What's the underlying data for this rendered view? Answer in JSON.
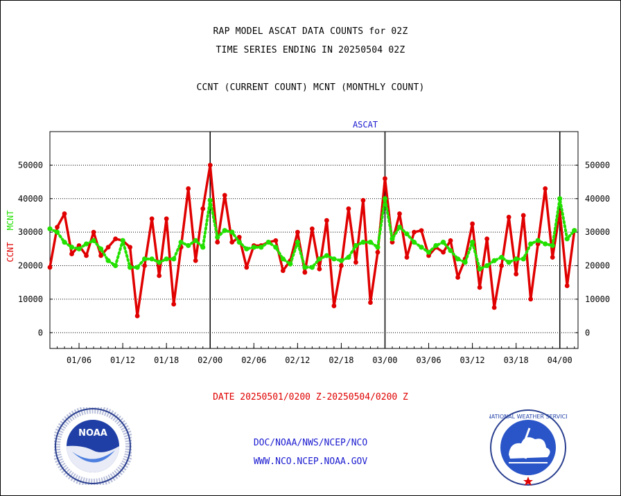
{
  "header": {
    "line1": "RAP MODEL ASCAT DATA COUNTS for 02Z",
    "line2": "TIME SERIES ENDING IN 20250504 02Z",
    "line3": "CCNT (CURRENT COUNT) MCNT (MONTHLY COUNT)"
  },
  "footer": {
    "date_range": "DATE 20250501/0200 Z-20250504/0200 Z",
    "org": "DOC/NOAA/NWS/NCEP/NCO",
    "url": "WWW.NCO.NCEP.NOAA.GOV"
  },
  "logos": {
    "noaa_text": "NOAA",
    "nws_text": "NATIONAL WEATHER SERVICE"
  },
  "chart_data": {
    "type": "line",
    "title": "ASCAT",
    "ylabel_left": "CCNT",
    "ylabel_left2": "MCNT",
    "ylim": [
      -4700,
      60000
    ],
    "yticks": [
      0,
      10000,
      20000,
      30000,
      40000,
      50000
    ],
    "xticks": [
      "01/06",
      "01/12",
      "01/18",
      "02/00",
      "02/06",
      "02/12",
      "02/18",
      "03/00",
      "03/06",
      "03/12",
      "03/18",
      "04/00"
    ],
    "xlim": [
      0,
      72.5
    ],
    "xtick_positions": [
      4,
      10,
      16,
      22,
      28,
      34,
      40,
      46,
      52,
      58,
      64,
      70
    ],
    "day_boundaries": [
      22,
      46,
      70
    ],
    "colors": {
      "ccnt": "#e00000",
      "mcnt": "#22e000",
      "title": "#1a1ad0"
    },
    "series": [
      {
        "name": "CCNT",
        "values": [
          19500,
          31500,
          35500,
          23500,
          26000,
          23000,
          30000,
          23000,
          25500,
          28000,
          27500,
          25500,
          5000,
          20000,
          34000,
          17000,
          34000,
          8500,
          25500,
          43000,
          21500,
          37000,
          50000,
          27000,
          41000,
          27000,
          28500,
          19500,
          26000,
          26000,
          27000,
          27500,
          18500,
          21500,
          30000,
          18000,
          31000,
          19000,
          33500,
          8000,
          20000,
          37000,
          21000,
          39500,
          9000,
          24000,
          46000,
          27000,
          35500,
          22500,
          30000,
          30500,
          23000,
          25500,
          24000,
          27500,
          16500,
          22000,
          32500,
          13500,
          28000,
          7500,
          20000,
          34500,
          17500,
          35000,
          10000,
          26500,
          43000,
          22500,
          36000,
          14000,
          30500
        ]
      },
      {
        "name": "MCNT",
        "values": [
          31000,
          30000,
          27000,
          25500,
          25000,
          26500,
          27500,
          25000,
          21500,
          20000,
          27500,
          19500,
          19500,
          22000,
          22000,
          21000,
          22000,
          22000,
          27000,
          26000,
          27500,
          25500,
          39500,
          28500,
          30500,
          30000,
          27000,
          25000,
          25500,
          25500,
          27000,
          25500,
          22000,
          20500,
          27000,
          19500,
          19500,
          22000,
          23000,
          22000,
          21500,
          22500,
          26000,
          27000,
          27000,
          25500,
          40000,
          28000,
          31500,
          29500,
          27000,
          25500,
          24000,
          26000,
          27000,
          24500,
          22000,
          21000,
          27000,
          19000,
          20000,
          21500,
          22500,
          21000,
          22000,
          22000,
          26500,
          27500,
          26500,
          26000,
          40000,
          28000,
          30500
        ]
      }
    ]
  }
}
